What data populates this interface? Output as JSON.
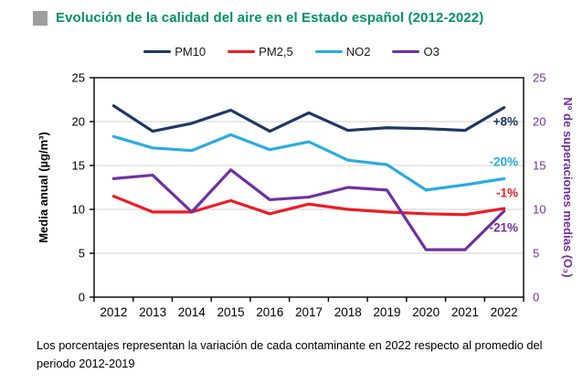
{
  "page": {
    "title": "Evolución de la calidad del aire en el Estado español (2012-2022)",
    "footnote": "Los porcentajes representan la variación de cada contaminante en 2022 respecto al promedio del periodo 2012-2019"
  },
  "colors": {
    "title": "#00916c",
    "title_bullet": "#9e9e9e",
    "pm10": "#1f3864",
    "pm25": "#ed1c24",
    "no2": "#29abe2",
    "o3": "#7030a0",
    "grid": "#d9d9d9",
    "axis": "#000000",
    "left_axis_text": "#000000",
    "right_axis_text": "#7030a0"
  },
  "chart_data": {
    "type": "line",
    "title": "Evolución de la calidad del aire en el Estado español (2012-2022)",
    "categories": [
      "2012",
      "2013",
      "2014",
      "2015",
      "2016",
      "2017",
      "2018",
      "2019",
      "2020",
      "2021",
      "2022"
    ],
    "series": [
      {
        "name": "PM10",
        "color_key": "pm10",
        "annotation": "+8%",
        "values": [
          21.8,
          18.9,
          19.8,
          21.3,
          18.9,
          21.0,
          19.0,
          19.3,
          19.2,
          19.0,
          21.6
        ]
      },
      {
        "name": "PM2,5",
        "color_key": "pm25",
        "annotation": "-1%",
        "values": [
          11.5,
          9.7,
          9.7,
          11.0,
          9.5,
          10.6,
          10.0,
          9.7,
          9.5,
          9.4,
          10.1
        ]
      },
      {
        "name": "NO2",
        "color_key": "no2",
        "annotation": "-20%",
        "values": [
          18.3,
          17.0,
          16.7,
          18.5,
          16.8,
          17.7,
          15.6,
          15.1,
          12.2,
          12.8,
          13.5
        ]
      },
      {
        "name": "O3",
        "color_key": "o3",
        "annotation": "-21%",
        "values": [
          13.5,
          13.9,
          9.7,
          14.5,
          11.1,
          11.4,
          12.5,
          12.2,
          5.4,
          5.4,
          9.8
        ]
      }
    ],
    "legend_order": [
      "PM10",
      "PM2,5",
      "NO2",
      "O3"
    ],
    "ylabel_left": "Media anual (µg/m³)",
    "ylabel_right": "Nº de superaciones medias (O₃)",
    "ylim": [
      0,
      25
    ],
    "yticks": [
      0,
      5,
      10,
      15,
      20,
      25
    ],
    "grid": "horizontal-light",
    "legend_position": "top-center",
    "annotations": [
      {
        "text": "+8%",
        "color_key": "pm10",
        "value_at": 20.0
      },
      {
        "text": "-20%",
        "color_key": "no2",
        "value_at": 15.4
      },
      {
        "text": "-1%",
        "color_key": "pm25",
        "value_at": 11.9
      },
      {
        "text": "-21%",
        "color_key": "o3",
        "value_at": 7.9
      }
    ]
  }
}
